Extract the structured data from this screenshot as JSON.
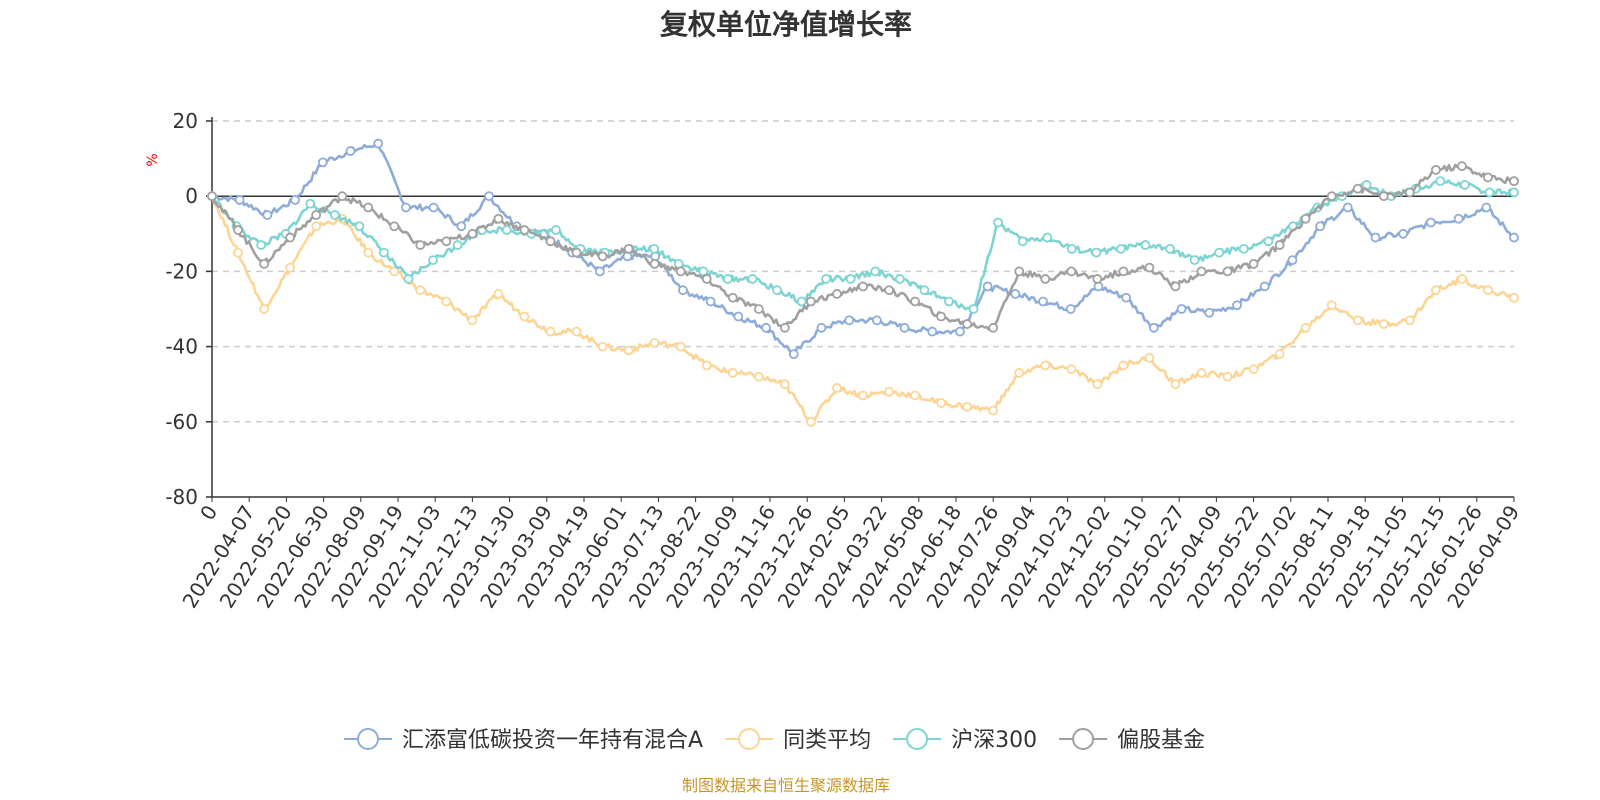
{
  "chart_data": {
    "type": "line",
    "title": "复权单位净值增长率",
    "ylabel": "%",
    "ylim": [
      -80,
      20
    ],
    "yticks": [
      20,
      0,
      -20,
      -40,
      -60,
      -80
    ],
    "x_tick_labels": [
      "0",
      "2022-04-07",
      "2022-05-20",
      "2022-06-30",
      "2022-08-09",
      "2022-09-19",
      "2022-11-03",
      "2022-12-13",
      "2023-01-30",
      "2023-03-09",
      "2023-04-19",
      "2023-06-01",
      "2023-07-13",
      "2023-08-22",
      "2023-10-09",
      "2023-11-16",
      "2023-12-26",
      "2024-02-05",
      "2024-03-22",
      "2024-05-08",
      "2024-06-18",
      "2024-07-26",
      "2024-09-04",
      "2024-10-23",
      "2024-12-02",
      "2025-01-10",
      "2025-02-27",
      "2025-04-09",
      "2025-05-22",
      "2025-07-02",
      "2025-08-11",
      "2025-09-18",
      "2025-11-05",
      "2025-12-15",
      "2026-01-26",
      "2026-04-09"
    ],
    "series": [
      {
        "name": "汇添富低碳投资一年持有混合A",
        "color": "#8eacd8",
        "values": [
          0,
          -1,
          -5,
          -1,
          9,
          12,
          14,
          -3,
          -3,
          -8,
          0,
          -8,
          -10,
          -15,
          -20,
          -16,
          -16,
          -25,
          -28,
          -32,
          -35,
          -42,
          -35,
          -33,
          -33,
          -35,
          -36,
          -36,
          -24,
          -26,
          -28,
          -30,
          -24,
          -27,
          -35,
          -30,
          -31,
          -29,
          -24,
          -17,
          -8,
          -3,
          -11,
          -10,
          -7,
          -6,
          -3,
          -11
        ]
      },
      {
        "name": "同类平均",
        "color": "#fcd595",
        "values": [
          0,
          -15,
          -30,
          -19,
          -8,
          -6,
          -15,
          -20,
          -25,
          -28,
          -33,
          -26,
          -32,
          -36,
          -36,
          -40,
          -41,
          -39,
          -40,
          -45,
          -47,
          -48,
          -50,
          -60,
          -51,
          -53,
          -52,
          -53,
          -55,
          -56,
          -57,
          -47,
          -45,
          -46,
          -50,
          -45,
          -43,
          -50,
          -47,
          -48,
          -46,
          -42,
          -35,
          -29,
          -33,
          -34,
          -33,
          -25,
          -22,
          -25,
          -27
        ]
      },
      {
        "name": "沪深300",
        "color": "#7dd4d2",
        "values": [
          0,
          -8,
          -13,
          -10,
          -2,
          -5,
          -8,
          -15,
          -22,
          -17,
          -13,
          -9,
          -9,
          -10,
          -9,
          -14,
          -15,
          -14,
          -14,
          -18,
          -20,
          -22,
          -22,
          -25,
          -28,
          -22,
          -22,
          -20,
          -22,
          -25,
          -28,
          -30,
          -7,
          -12,
          -11,
          -14,
          -15,
          -14,
          -13,
          -14,
          -17,
          -15,
          -14,
          -12,
          -8,
          -3,
          0,
          3,
          0,
          2,
          4,
          3,
          1,
          1
        ]
      },
      {
        "name": "偏股基金",
        "color": "#a0a0a0",
        "values": [
          0,
          -9,
          -18,
          -11,
          -5,
          0,
          -3,
          -8,
          -13,
          -12,
          -10,
          -6,
          -9,
          -12,
          -15,
          -16,
          -14,
          -18,
          -20,
          -22,
          -27,
          -30,
          -35,
          -28,
          -26,
          -24,
          -25,
          -28,
          -32,
          -34,
          -35,
          -20,
          -22,
          -20,
          -22,
          -20,
          -19,
          -24,
          -20,
          -20,
          -18,
          -13,
          -6,
          0,
          2,
          0,
          1,
          7,
          8,
          5,
          4
        ]
      }
    ],
    "legend_position": "bottom-center",
    "grid": true,
    "source": "制图数据来自恒生聚源数据库"
  }
}
